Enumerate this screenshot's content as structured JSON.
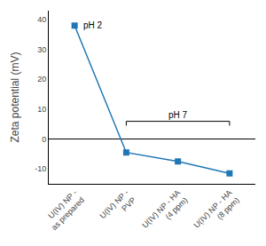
{
  "chart_data": {
    "type": "line",
    "categories": [
      "U(IV) NP -\nas prepared",
      "U(IV) NP -\nPVP",
      "U(IV) NP - HA\n(4 ppm)",
      "U(IV) NP - HA\n(8 ppm)"
    ],
    "values": [
      38,
      -4.5,
      -7.5,
      -11.5
    ],
    "ylabel": "Zeta potential (mV)",
    "ylim": [
      -15,
      43
    ],
    "yticks": [
      -10,
      0,
      10,
      20,
      30,
      40
    ],
    "marker": "square",
    "grid": false,
    "annotations": [
      "pH 2",
      "pH 7"
    ]
  }
}
